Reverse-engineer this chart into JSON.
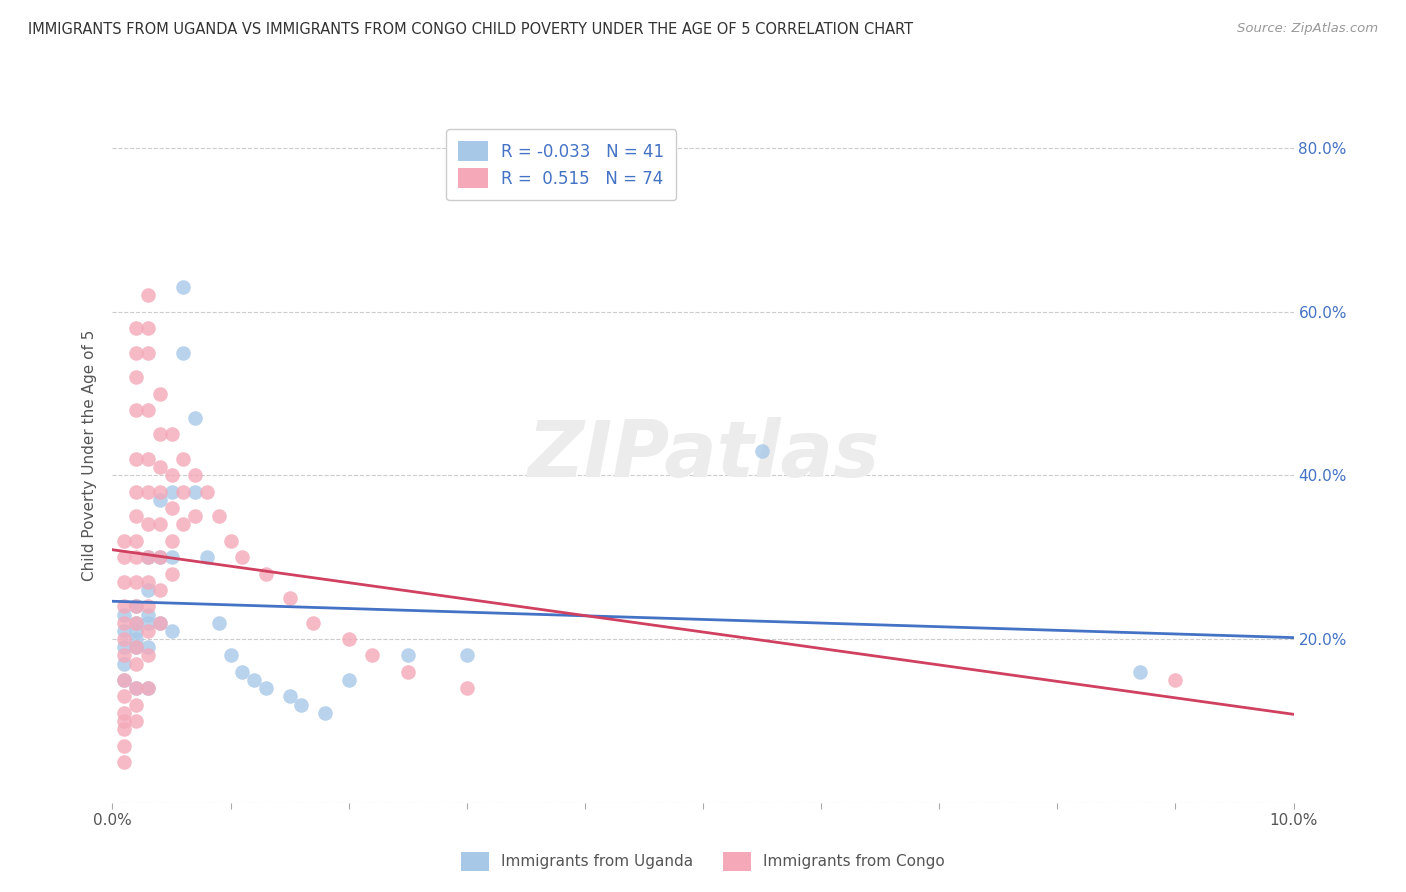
{
  "title": "IMMIGRANTS FROM UGANDA VS IMMIGRANTS FROM CONGO CHILD POVERTY UNDER THE AGE OF 5 CORRELATION CHART",
  "source": "Source: ZipAtlas.com",
  "ylabel": "Child Poverty Under the Age of 5",
  "legend_uganda": "Immigrants from Uganda",
  "legend_congo": "Immigrants from Congo",
  "R_uganda": -0.033,
  "N_uganda": 41,
  "R_congo": 0.515,
  "N_congo": 74,
  "xlim": [
    0.0,
    0.1
  ],
  "ylim": [
    0.0,
    0.85
  ],
  "x_ticks": [
    0.0,
    0.01,
    0.02,
    0.03,
    0.04,
    0.05,
    0.06,
    0.07,
    0.08,
    0.09,
    0.1
  ],
  "y_ticks": [
    0.0,
    0.2,
    0.4,
    0.6,
    0.8
  ],
  "y_tick_labels_right": [
    "",
    "20.0%",
    "40.0%",
    "60.0%",
    "80.0%"
  ],
  "color_uganda": "#a8c8e8",
  "color_congo": "#f4a8b8",
  "line_color_uganda": "#4472c4",
  "line_color_congo": "#d04060",
  "background_color": "#ffffff",
  "grid_color": "#cccccc",
  "watermark": "ZIPatlas",
  "uganda_x": [
    0.001,
    0.001,
    0.001,
    0.001,
    0.001,
    0.002,
    0.002,
    0.002,
    0.002,
    0.002,
    0.002,
    0.003,
    0.003,
    0.003,
    0.003,
    0.003,
    0.003,
    0.004,
    0.004,
    0.004,
    0.005,
    0.005,
    0.005,
    0.006,
    0.006,
    0.007,
    0.007,
    0.008,
    0.009,
    0.01,
    0.011,
    0.012,
    0.013,
    0.015,
    0.016,
    0.018,
    0.02,
    0.025,
    0.03,
    0.055,
    0.087
  ],
  "uganda_y": [
    0.23,
    0.21,
    0.19,
    0.17,
    0.15,
    0.24,
    0.22,
    0.21,
    0.2,
    0.19,
    0.14,
    0.3,
    0.26,
    0.23,
    0.22,
    0.19,
    0.14,
    0.37,
    0.3,
    0.22,
    0.38,
    0.3,
    0.21,
    0.63,
    0.55,
    0.47,
    0.38,
    0.3,
    0.22,
    0.18,
    0.16,
    0.15,
    0.14,
    0.13,
    0.12,
    0.11,
    0.15,
    0.18,
    0.18,
    0.43,
    0.16
  ],
  "congo_x": [
    0.001,
    0.001,
    0.001,
    0.001,
    0.001,
    0.001,
    0.001,
    0.001,
    0.001,
    0.001,
    0.001,
    0.001,
    0.001,
    0.001,
    0.002,
    0.002,
    0.002,
    0.002,
    0.002,
    0.002,
    0.002,
    0.002,
    0.002,
    0.002,
    0.002,
    0.002,
    0.002,
    0.002,
    0.002,
    0.002,
    0.002,
    0.003,
    0.003,
    0.003,
    0.003,
    0.003,
    0.003,
    0.003,
    0.003,
    0.003,
    0.003,
    0.003,
    0.003,
    0.003,
    0.004,
    0.004,
    0.004,
    0.004,
    0.004,
    0.004,
    0.004,
    0.004,
    0.005,
    0.005,
    0.005,
    0.005,
    0.005,
    0.006,
    0.006,
    0.006,
    0.007,
    0.007,
    0.008,
    0.009,
    0.01,
    0.011,
    0.013,
    0.015,
    0.017,
    0.02,
    0.022,
    0.025,
    0.03,
    0.09
  ],
  "congo_y": [
    0.32,
    0.3,
    0.27,
    0.24,
    0.22,
    0.2,
    0.18,
    0.15,
    0.13,
    0.11,
    0.1,
    0.09,
    0.07,
    0.05,
    0.58,
    0.55,
    0.52,
    0.48,
    0.42,
    0.38,
    0.35,
    0.32,
    0.3,
    0.27,
    0.24,
    0.22,
    0.19,
    0.17,
    0.14,
    0.12,
    0.1,
    0.62,
    0.58,
    0.55,
    0.48,
    0.42,
    0.38,
    0.34,
    0.3,
    0.27,
    0.24,
    0.21,
    0.18,
    0.14,
    0.5,
    0.45,
    0.41,
    0.38,
    0.34,
    0.3,
    0.26,
    0.22,
    0.45,
    0.4,
    0.36,
    0.32,
    0.28,
    0.42,
    0.38,
    0.34,
    0.4,
    0.35,
    0.38,
    0.35,
    0.32,
    0.3,
    0.28,
    0.25,
    0.22,
    0.2,
    0.18,
    0.16,
    0.14,
    0.15
  ]
}
